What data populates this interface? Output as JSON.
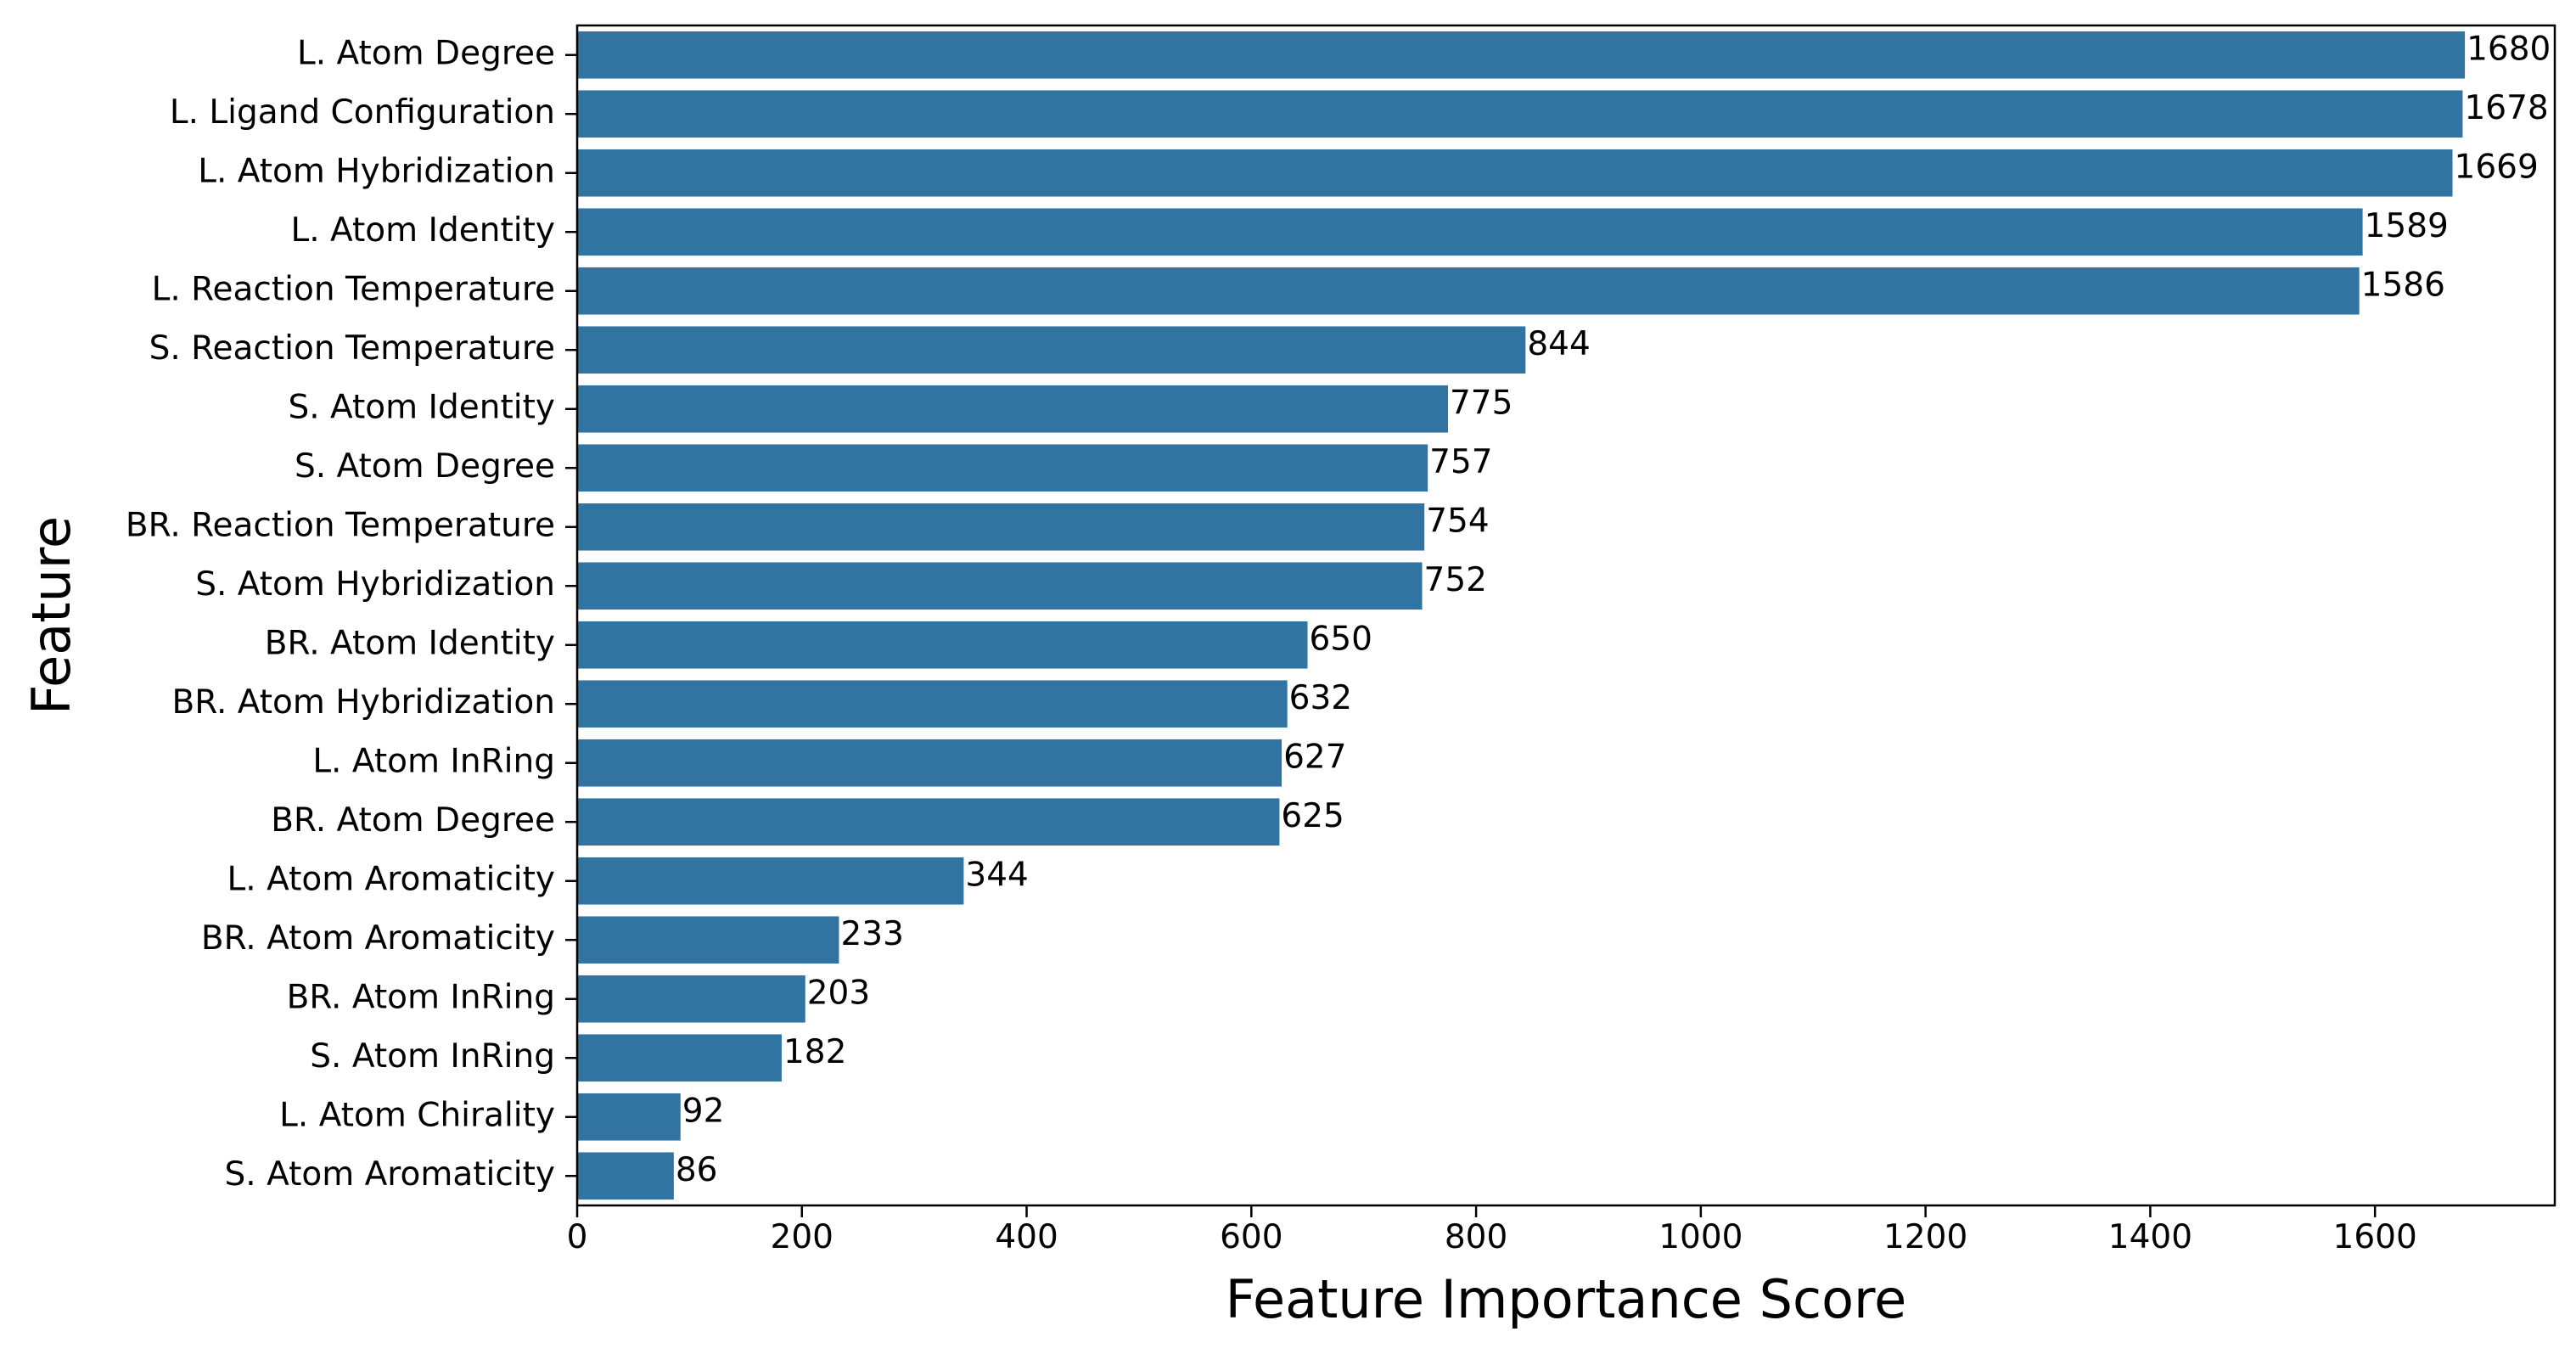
{
  "chart_data": {
    "type": "bar",
    "orientation": "horizontal",
    "xlabel": "Feature Importance Score",
    "ylabel": "Feature",
    "xlim": [
      0,
      1760
    ],
    "xticks": [
      0,
      200,
      400,
      600,
      800,
      1000,
      1200,
      1400,
      1600
    ],
    "bar_color": "#3274a1",
    "grid": false,
    "categories": [
      "L. Atom Degree",
      "L. Ligand Configuration",
      "L. Atom Hybridization",
      "L. Atom Identity",
      "L. Reaction Temperature",
      "S. Reaction Temperature",
      "S. Atom Identity",
      "S. Atom Degree",
      "BR. Reaction Temperature",
      "S. Atom Hybridization",
      "BR. Atom Identity",
      "BR. Atom Hybridization",
      "L. Atom InRing",
      "BR. Atom Degree",
      "L. Atom Aromaticity",
      "BR. Atom Aromaticity",
      "BR. Atom InRing",
      "S. Atom InRing",
      "L. Atom Chirality",
      "S. Atom Aromaticity"
    ],
    "values": [
      1680,
      1678,
      1669,
      1589,
      1586,
      844,
      775,
      757,
      754,
      752,
      650,
      632,
      627,
      625,
      344,
      233,
      203,
      182,
      92,
      86
    ]
  }
}
